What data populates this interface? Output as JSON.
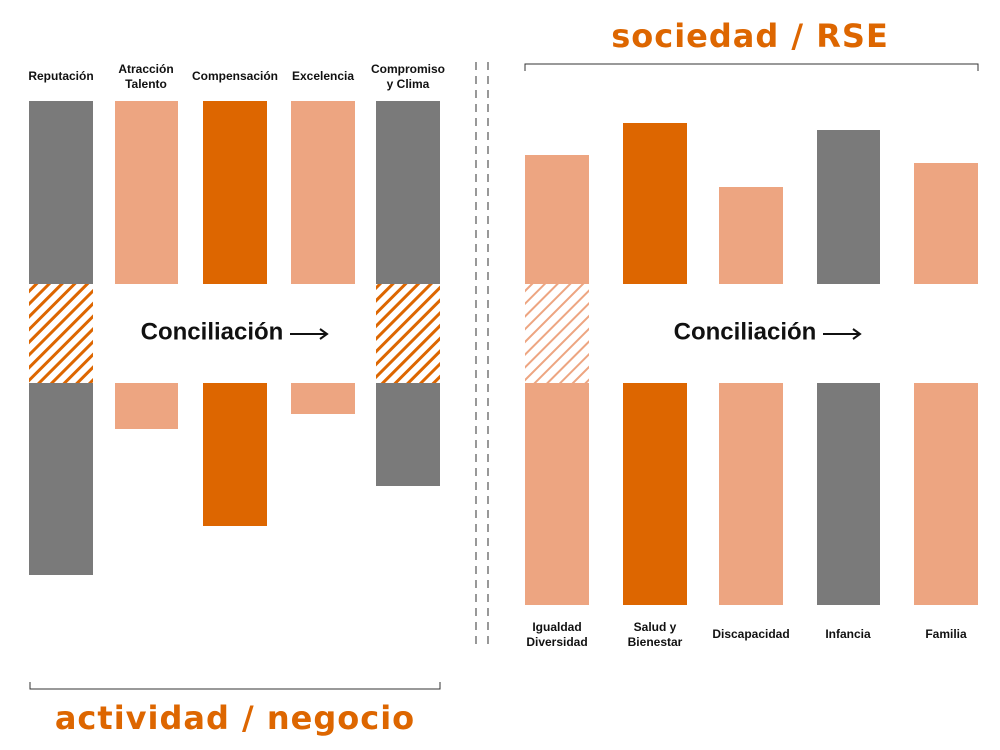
{
  "left": {
    "heading": "actividad / negocio",
    "middle": "Conciliación",
    "categories": [
      [
        "Reputación"
      ],
      [
        "Atracción",
        "Talento"
      ],
      [
        "Compensación"
      ],
      [
        "Excelencia"
      ],
      [
        "Compromiso",
        "y Clima"
      ]
    ]
  },
  "right": {
    "heading": "sociedad / RSE",
    "middle": "Conciliación",
    "categories": [
      [
        "Igualdad",
        "Diversidad"
      ],
      [
        "Salud y",
        "Bienestar"
      ],
      [
        "Discapacidad"
      ],
      [
        "Infancia"
      ],
      [
        "Familia"
      ]
    ]
  }
}
